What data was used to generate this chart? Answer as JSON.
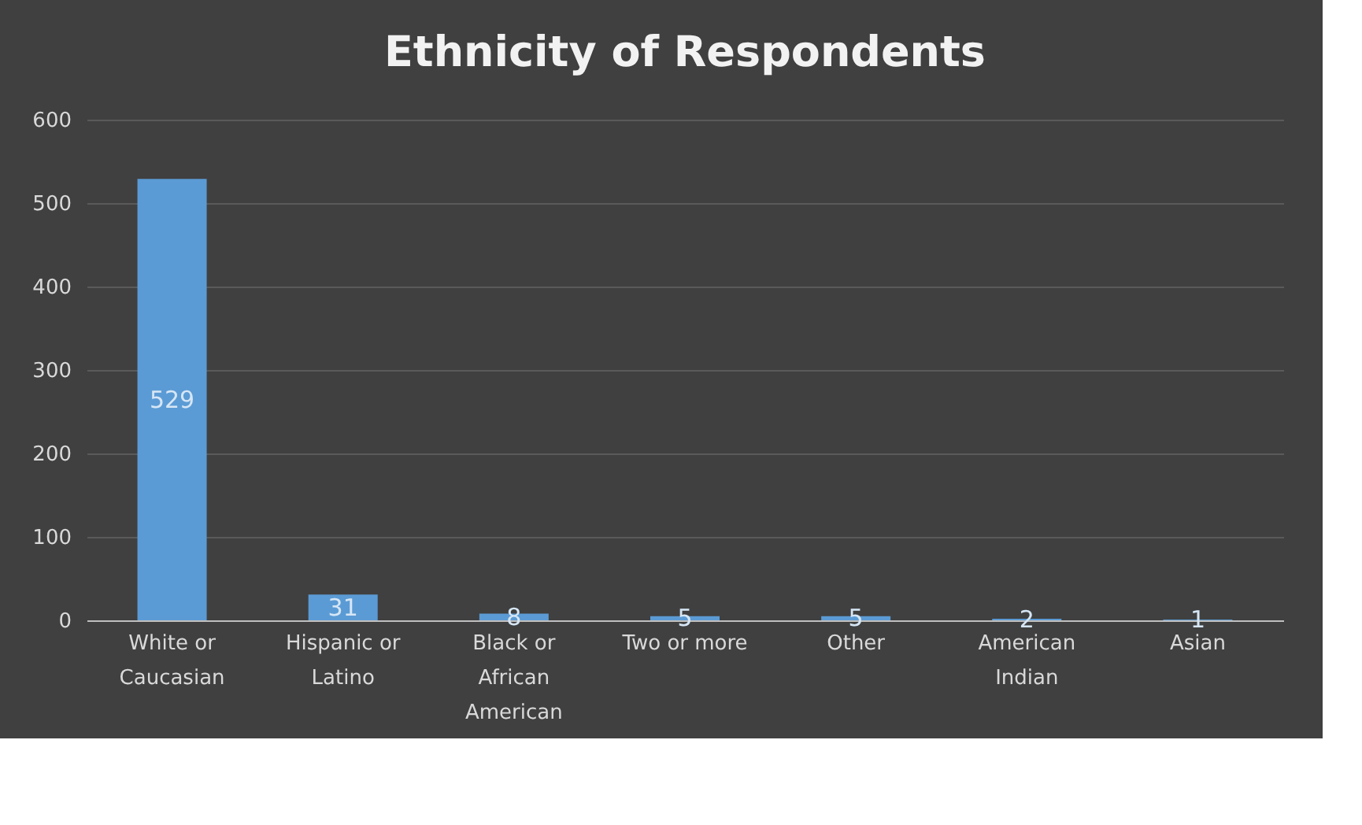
{
  "chart_data": {
    "type": "bar",
    "title": "Ethnicity of Respondents",
    "categories": [
      "White or Caucasian",
      "Hispanic or Latino",
      "Black or African American",
      "Two or more",
      "Other",
      "American Indian",
      "Asian"
    ],
    "values": [
      529,
      31,
      8,
      5,
      5,
      2,
      1
    ],
    "color": "#5b9bd5",
    "ylim": [
      0,
      600
    ],
    "yticks": [
      0,
      100,
      200,
      300,
      400,
      500,
      600
    ],
    "grid": "y",
    "data_labels": true
  }
}
